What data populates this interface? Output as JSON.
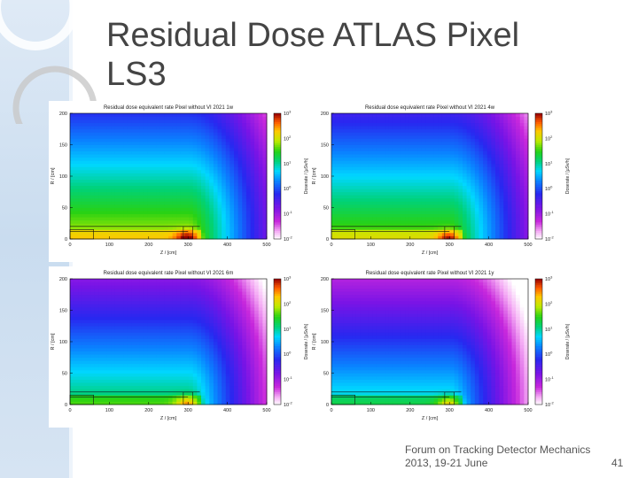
{
  "slide": {
    "title_line1": "Residual Dose ATLAS Pixel",
    "title_line2": "LS3",
    "footer_line1": "Forum on Tracking Detector Mechanics",
    "footer_line2": "2013, 19-21 June",
    "page_number": "41"
  },
  "colors": {
    "sidebar": "#d6e4f3",
    "title": "#444444",
    "footer": "#555555"
  },
  "chart_data": [
    {
      "type": "heatmap",
      "title": "Residual dose equivalent rate Pixel without VI 2021 1w",
      "xlabel": "Z / [cm]",
      "ylabel": "R / [cm]",
      "colorbar_label": "Doserate / [μSv/h]",
      "xlim": [
        0,
        500
      ],
      "ylim": [
        0,
        200
      ],
      "x_ticks": [
        0,
        100,
        200,
        300,
        400,
        500
      ],
      "y_ticks": [
        0,
        50,
        100,
        150,
        200
      ],
      "colorbar_ticks": [
        "10^-2",
        "10^-1",
        "10^0",
        "10^1",
        "10^2",
        "10^3"
      ],
      "log_range": [
        -2,
        3
      ],
      "peak_log_dose": 2.5,
      "peak_location_cm": [
        300,
        5
      ]
    },
    {
      "type": "heatmap",
      "title": "Residual dose equivalent rate Pixel without VI 2021 4w",
      "xlabel": "Z / [cm]",
      "ylabel": "R / [cm]",
      "colorbar_label": "Doserate / [μSv/h]",
      "xlim": [
        0,
        500
      ],
      "ylim": [
        0,
        200
      ],
      "x_ticks": [
        0,
        100,
        200,
        300,
        400,
        500
      ],
      "y_ticks": [
        0,
        50,
        100,
        150,
        200
      ],
      "colorbar_ticks": [
        "10^-2",
        "10^-1",
        "10^0",
        "10^1",
        "10^2",
        "10^3"
      ],
      "log_range": [
        -2,
        3
      ],
      "peak_log_dose": 2.3,
      "peak_location_cm": [
        300,
        5
      ]
    },
    {
      "type": "heatmap",
      "title": "Residual dose equivalent rate Pixel without VI 2021 6m",
      "xlabel": "Z / [cm]",
      "ylabel": "R / [cm]",
      "colorbar_label": "Doserate / [μSv/h]",
      "xlim": [
        0,
        500
      ],
      "ylim": [
        0,
        200
      ],
      "x_ticks": [
        0,
        100,
        200,
        300,
        400,
        500
      ],
      "y_ticks": [
        0,
        50,
        100,
        150,
        200
      ],
      "colorbar_ticks": [
        "10^-2",
        "10^-1",
        "10^0",
        "10^1",
        "10^2",
        "10^3"
      ],
      "log_range": [
        -2,
        3
      ],
      "peak_log_dose": 1.8,
      "peak_location_cm": [
        300,
        5
      ]
    },
    {
      "type": "heatmap",
      "title": "Residual dose equivalent rate Pixel without VI 2021 1y",
      "xlabel": "Z / [cm]",
      "ylabel": "R / [cm]",
      "colorbar_label": "Doserate / [μSv/h]",
      "xlim": [
        0,
        500
      ],
      "ylim": [
        0,
        200
      ],
      "x_ticks": [
        0,
        100,
        200,
        300,
        400,
        500
      ],
      "y_ticks": [
        0,
        50,
        100,
        150,
        200
      ],
      "colorbar_ticks": [
        "10^-2",
        "10^-1",
        "10^0",
        "10^1",
        "10^2",
        "10^3"
      ],
      "log_range": [
        -2,
        3
      ],
      "peak_log_dose": 1.5,
      "peak_location_cm": [
        300,
        5
      ]
    }
  ]
}
